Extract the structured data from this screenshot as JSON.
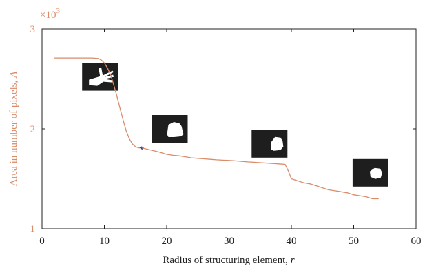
{
  "chart_data": {
    "type": "line",
    "xlabel": {
      "text": "Radius of structuring element, ",
      "var": "r"
    },
    "ylabel": {
      "text": "Area in number of pixels, ",
      "var": "A"
    },
    "multiplier": {
      "base": "×10",
      "exp": "3"
    },
    "xlim": [
      0,
      60
    ],
    "ylim": [
      1,
      3
    ],
    "xticks": [
      "0",
      "10",
      "20",
      "30",
      "40",
      "50",
      "60"
    ],
    "yticks": [
      "1",
      "2",
      "3"
    ],
    "grid": false,
    "series": [
      {
        "x": [
          2,
          4,
          6,
          8,
          9,
          9.5,
          10,
          10.5,
          11,
          11.5,
          12,
          12.5,
          13,
          13.5,
          14,
          14.5,
          15,
          15.5,
          16,
          17,
          18,
          19,
          20,
          21,
          22,
          23,
          24,
          25,
          26,
          27,
          28,
          29,
          30,
          31,
          32,
          33,
          34,
          35,
          36,
          37,
          38,
          39,
          39.5,
          40,
          41,
          42,
          43,
          44,
          45,
          46,
          47,
          48,
          49,
          50,
          51,
          52,
          53,
          54
        ],
        "y": [
          2.71,
          2.71,
          2.71,
          2.71,
          2.705,
          2.69,
          2.66,
          2.61,
          2.54,
          2.44,
          2.33,
          2.21,
          2.09,
          1.98,
          1.9,
          1.85,
          1.82,
          1.81,
          1.81,
          1.795,
          1.78,
          1.765,
          1.745,
          1.735,
          1.73,
          1.72,
          1.71,
          1.705,
          1.7,
          1.695,
          1.69,
          1.687,
          1.684,
          1.68,
          1.675,
          1.67,
          1.666,
          1.662,
          1.658,
          1.654,
          1.65,
          1.645,
          1.58,
          1.5,
          1.48,
          1.46,
          1.45,
          1.43,
          1.41,
          1.39,
          1.38,
          1.37,
          1.36,
          1.34,
          1.33,
          1.32,
          1.3,
          1.3
        ],
        "color": "#d98b6a"
      }
    ],
    "marker": {
      "x": 16,
      "y": 1.81,
      "symbol": "*",
      "color": "#3a3a8c"
    },
    "insets": [
      {
        "name": "full-hand",
        "x": 9.3,
        "y": 2.52
      },
      {
        "name": "closed-fist",
        "x": 20.5,
        "y": 2.0
      },
      {
        "name": "partial-fist",
        "x": 36.5,
        "y": 1.85
      },
      {
        "name": "round-blob",
        "x": 52.7,
        "y": 1.56
      }
    ]
  },
  "colors": {
    "line": "#d98b6a",
    "axis": "#222222",
    "ylabel": "#d98b6a",
    "marker": "#3a3a8c",
    "inset_bg": "#1e1e1e",
    "inset_fg": "#ffffff"
  }
}
